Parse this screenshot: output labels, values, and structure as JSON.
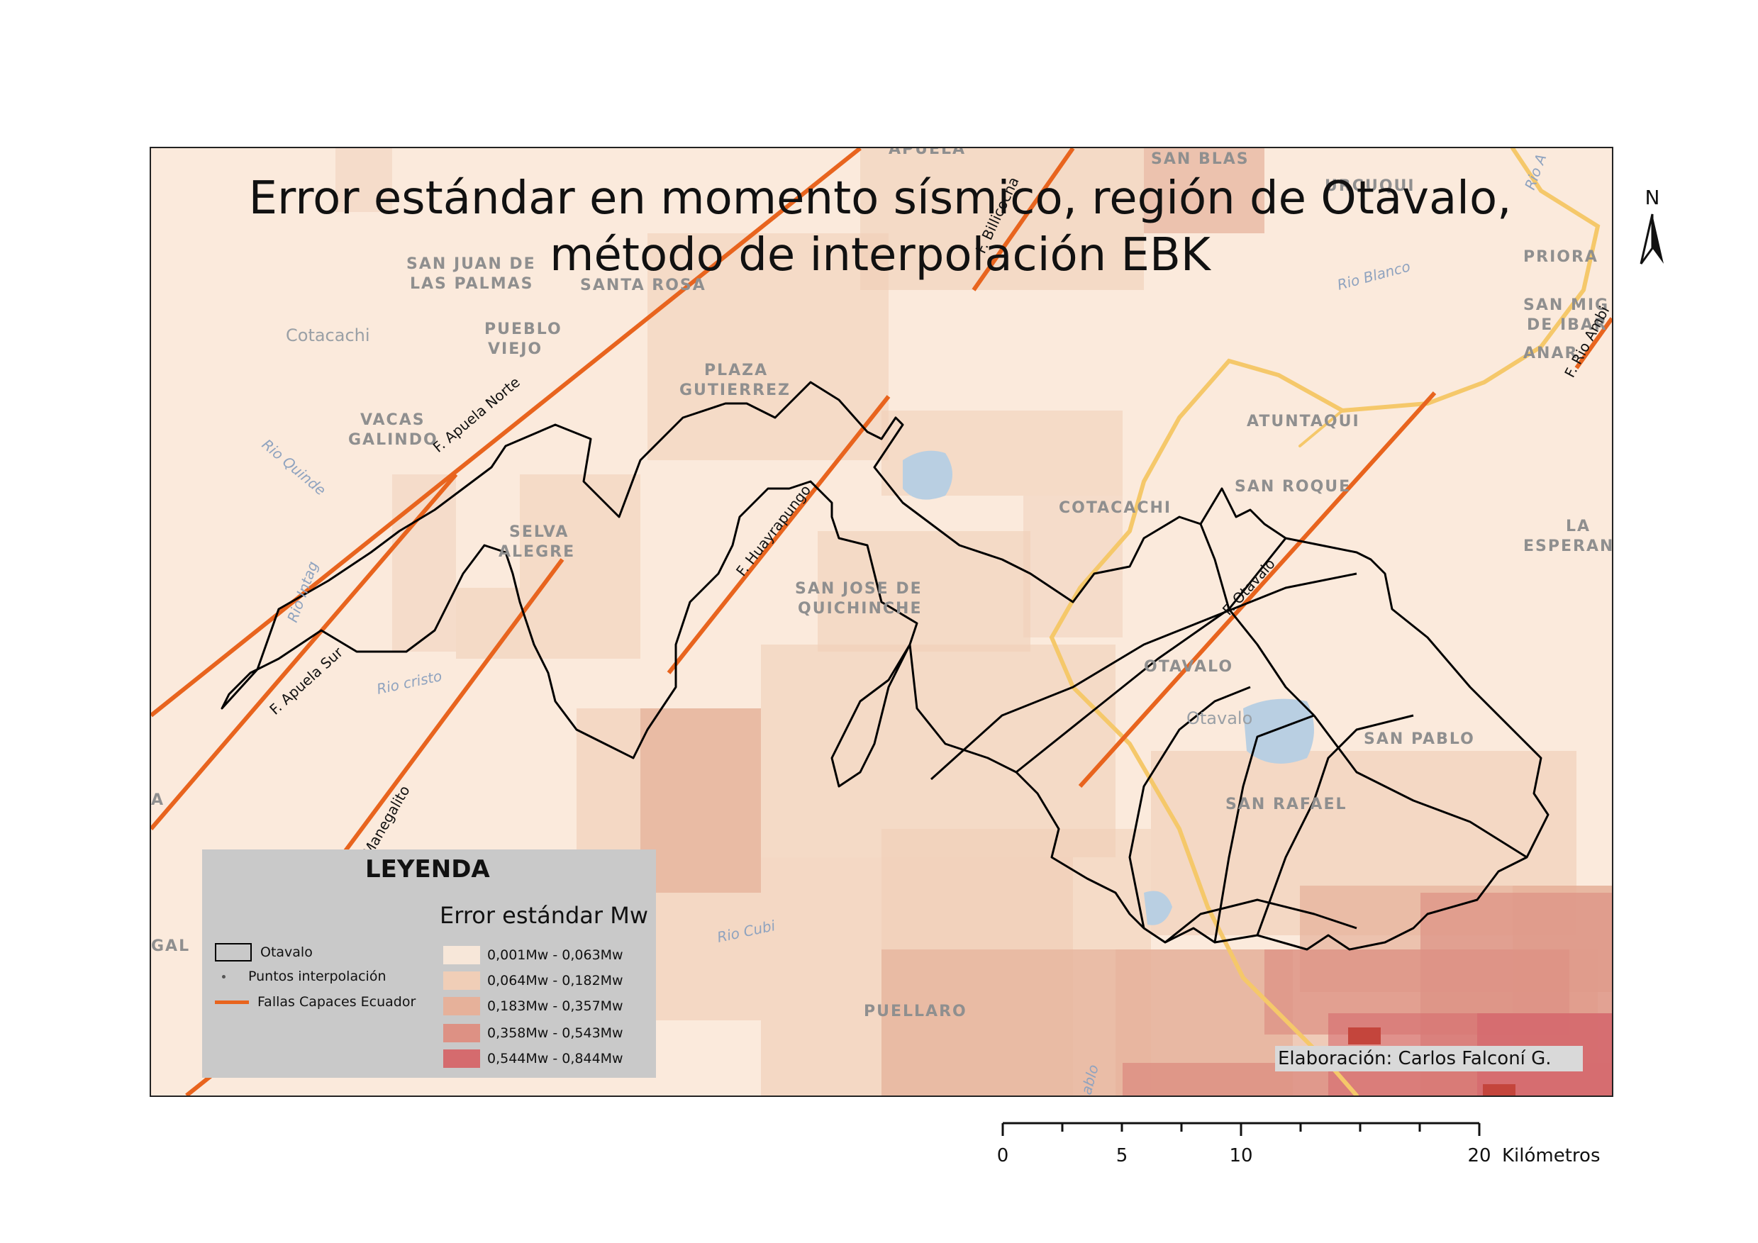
{
  "map": {
    "title_line1": "Error estándar en momento sísmico, región de Otavalo,",
    "title_line2": "método de interpolación EBK",
    "credit": "Elaboración: Carlos Falconí G."
  },
  "legend": {
    "title": "LEYENDA",
    "symbols": [
      {
        "label": "Otavalo",
        "type": "polygon"
      },
      {
        "label": "Puntos interpolación",
        "type": "point"
      },
      {
        "label": "Fallas Capaces Ecuador",
        "type": "line"
      }
    ],
    "classes_title": "Error estándar Mw",
    "classes": [
      {
        "label": "0,001Mw - 0,063Mw",
        "color": "#f7e7d9"
      },
      {
        "label": "0,064Mw - 0,182Mw",
        "color": "#f0ceb7"
      },
      {
        "label": "0,183Mw - 0,357Mw",
        "color": "#e6b19a"
      },
      {
        "label": "0,358Mw - 0,543Mw",
        "color": "#dd9184"
      },
      {
        "label": "0,544Mw - 0,844Mw",
        "color": "#d56b6e"
      }
    ]
  },
  "colors": {
    "fault": "#e8641e",
    "boundary": "#000000",
    "road": "#f5c86a",
    "water": "#b9cfe2"
  },
  "places": [
    "SAN BLAS",
    "URCUQUI",
    "APUELA",
    "SAN JUAN DE",
    "LAS PALMAS",
    "SANTA ROSA",
    "Cotacachi",
    "PUEBLO",
    "VIEJO",
    "PLAZA",
    "GUTIERREZ",
    "VACAS",
    "GALINDO",
    "ATUNTAQUI",
    "SAN ROQUE",
    "COTACACHI",
    "SELVA",
    "ALEGRE",
    "SAN JOSE DE",
    "QUICHINCHE",
    "OTAVALO",
    "Otavalo",
    "SAN PABLO",
    "SAN RAFAEL",
    "PUELLARO",
    "PRIORA",
    "SAN MIG",
    "DE IBAR",
    "ANAR",
    "LA",
    "ESPERAN",
    "GAL",
    "A"
  ],
  "rivers": [
    "Rio Quinde",
    "Rio Intag",
    "Rio cristo",
    "Rio Blanco",
    "Rio Cubi",
    "Rio A",
    "ablo"
  ],
  "faults": [
    "F. Apuela Norte",
    "F. Apuela Sur",
    "F. Huayrapungo",
    "F. Otavalo",
    "F. Billicocha",
    "F. Rio Ambi",
    "Manegalito"
  ],
  "north_label": "N",
  "scale": {
    "ticks": [
      "0",
      "5",
      "10",
      "20"
    ],
    "unit": "Kilómetros"
  }
}
